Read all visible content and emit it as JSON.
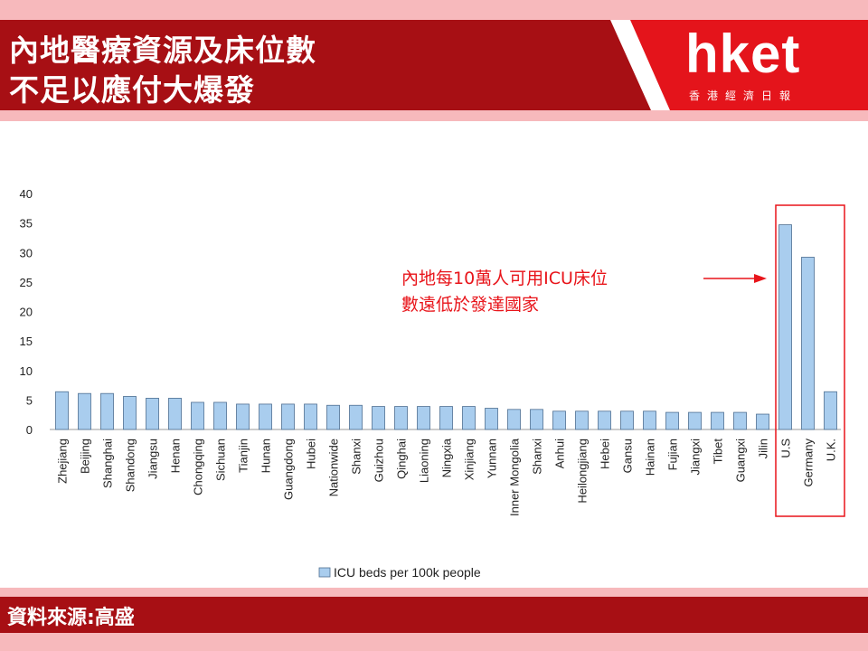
{
  "header": {
    "title_line1": "內地醫療資源及床位數",
    "title_line2": "不足以應付大爆發",
    "logo": "hket",
    "logo_sub": "香港經濟日報"
  },
  "annotation": {
    "line1": "內地每10萬人可用ICU床位",
    "line2": "數遠低於發達國家"
  },
  "footer": {
    "source": "資料來源:高盛"
  },
  "colors": {
    "brand": "#a70f14",
    "pink": "#f7b9bc",
    "bar_fill": "#a9cdee",
    "bar_stroke": "#4e6f91",
    "highlight": "#e8141a"
  },
  "chart_data": {
    "type": "bar",
    "categories": [
      "Zhejiang",
      "Beijing",
      "Shanghai",
      "Shandong",
      "Jiangsu",
      "Henan",
      "Chongqing",
      "Sichuan",
      "Tianjin",
      "Hunan",
      "Guangdong",
      "Hubei",
      "Nationwide",
      "Shanxi",
      "Guizhou",
      "Qinghai",
      "Liaoning",
      "Ningxia",
      "Xinjiang",
      "Yunnan",
      "Inner Mongolia",
      "Shanxi",
      "Anhui",
      "Heilongjiang",
      "Hebei",
      "Gansu",
      "Hainan",
      "Fujian",
      "Jiangxi",
      "Tibet",
      "Guangxi",
      "Jilin",
      "U.S",
      "Germany",
      "U.K."
    ],
    "series": [
      {
        "name": "ICU beds per 100k people",
        "values": [
          6.4,
          6.1,
          6.1,
          5.6,
          5.3,
          5.3,
          4.6,
          4.6,
          4.3,
          4.3,
          4.3,
          4.3,
          4.1,
          4.1,
          3.9,
          3.9,
          3.9,
          3.9,
          3.9,
          3.6,
          3.4,
          3.4,
          3.1,
          3.1,
          3.1,
          3.1,
          3.1,
          2.9,
          2.9,
          2.9,
          2.9,
          2.6,
          34.7,
          29.2,
          6.4
        ]
      }
    ],
    "yticks": [
      0,
      5,
      10,
      15,
      20,
      25,
      30,
      35,
      40
    ],
    "ylim": [
      0,
      40
    ],
    "grid": false,
    "legend": "bottom"
  }
}
